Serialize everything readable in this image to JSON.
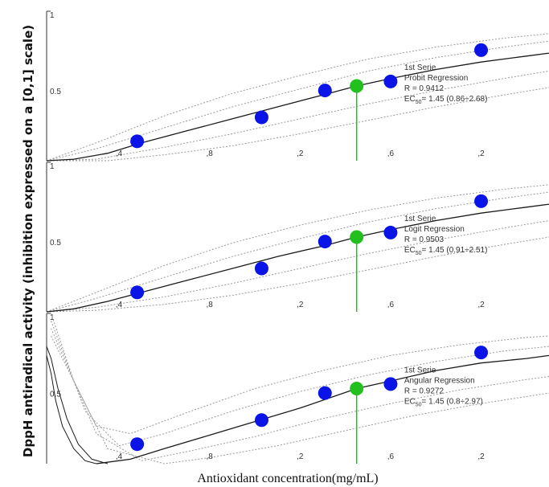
{
  "chart_data": [
    {
      "type": "scatter",
      "series_label": "1st Serie",
      "model": "Probit Regression",
      "r_text": "R = 0.9412",
      "ec_prefix": "EC",
      "ec_sub": "50",
      "ec_value": "= 1.45 (0.86÷2.68)",
      "xlim": [
        0.08,
        2.3
      ],
      "ylim": [
        0,
        1
      ],
      "yticks": [
        "1",
        "0.5"
      ],
      "xticks": [
        0.4,
        0.8,
        1.2,
        1.6,
        2.0
      ],
      "xtick_labels": [
        ",4",
        ",8",
        ",2",
        ",6",
        ",2"
      ],
      "points": [
        {
          "x": 0.48,
          "y": 0.13
        },
        {
          "x": 1.03,
          "y": 0.29
        },
        {
          "x": 1.31,
          "y": 0.47
        },
        {
          "x": 1.6,
          "y": 0.53
        },
        {
          "x": 2.0,
          "y": 0.74
        }
      ],
      "ec50_point": {
        "x": 1.45,
        "y": 0.5
      },
      "fit": [
        [
          0.08,
          0.0
        ],
        [
          0.2,
          0.01
        ],
        [
          0.35,
          0.05
        ],
        [
          0.5,
          0.12
        ],
        [
          0.7,
          0.2
        ],
        [
          0.9,
          0.28
        ],
        [
          1.1,
          0.36
        ],
        [
          1.3,
          0.44
        ],
        [
          1.45,
          0.5
        ],
        [
          1.6,
          0.55
        ],
        [
          1.8,
          0.61
        ],
        [
          2.0,
          0.66
        ],
        [
          2.2,
          0.7
        ],
        [
          2.3,
          0.72
        ]
      ],
      "bands": [
        [
          [
            0.08,
            0.0
          ],
          [
            0.3,
            0.12
          ],
          [
            0.6,
            0.3
          ],
          [
            0.9,
            0.45
          ],
          [
            1.2,
            0.57
          ],
          [
            1.5,
            0.68
          ],
          [
            1.8,
            0.76
          ],
          [
            2.1,
            0.82
          ],
          [
            2.3,
            0.85
          ]
        ],
        [
          [
            0.08,
            0.0
          ],
          [
            0.3,
            0.08
          ],
          [
            0.6,
            0.22
          ],
          [
            0.9,
            0.36
          ],
          [
            1.2,
            0.48
          ],
          [
            1.5,
            0.6
          ],
          [
            1.8,
            0.69
          ],
          [
            2.1,
            0.76
          ],
          [
            2.3,
            0.8
          ]
        ],
        [
          [
            0.08,
            0.0
          ],
          [
            0.3,
            0.01
          ],
          [
            0.6,
            0.09
          ],
          [
            0.9,
            0.18
          ],
          [
            1.2,
            0.28
          ],
          [
            1.5,
            0.38
          ],
          [
            1.8,
            0.47
          ],
          [
            2.1,
            0.55
          ],
          [
            2.3,
            0.6
          ]
        ],
        [
          [
            0.08,
            0.0
          ],
          [
            0.35,
            0.0
          ],
          [
            0.6,
            0.04
          ],
          [
            0.9,
            0.1
          ],
          [
            1.2,
            0.18
          ],
          [
            1.5,
            0.27
          ],
          [
            1.8,
            0.36
          ],
          [
            2.1,
            0.44
          ],
          [
            2.3,
            0.49
          ]
        ]
      ]
    },
    {
      "type": "scatter",
      "series_label": "1st Serie",
      "model": "Logit Regression",
      "r_text": "R = 0.9503",
      "ec_prefix": "EC",
      "ec_sub": "50",
      "ec_value": "= 1.45 (0.91÷2.51)",
      "xlim": [
        0.08,
        2.3
      ],
      "ylim": [
        0,
        1
      ],
      "yticks": [
        "1",
        "0.5"
      ],
      "xticks": [
        0.4,
        0.8,
        1.2,
        1.6,
        2.0
      ],
      "xtick_labels": [
        ",4",
        ",8",
        ",2",
        ",6",
        ",2"
      ],
      "points": [
        {
          "x": 0.48,
          "y": 0.13
        },
        {
          "x": 1.03,
          "y": 0.29
        },
        {
          "x": 1.31,
          "y": 0.47
        },
        {
          "x": 1.6,
          "y": 0.53
        },
        {
          "x": 2.0,
          "y": 0.74
        }
      ],
      "ec50_point": {
        "x": 1.45,
        "y": 0.5
      },
      "fit": [
        [
          0.08,
          0.0
        ],
        [
          0.2,
          0.02
        ],
        [
          0.35,
          0.07
        ],
        [
          0.5,
          0.13
        ],
        [
          0.7,
          0.21
        ],
        [
          0.9,
          0.29
        ],
        [
          1.1,
          0.37
        ],
        [
          1.3,
          0.44
        ],
        [
          1.45,
          0.5
        ],
        [
          1.6,
          0.55
        ],
        [
          1.8,
          0.61
        ],
        [
          2.0,
          0.66
        ],
        [
          2.2,
          0.7
        ],
        [
          2.3,
          0.72
        ]
      ],
      "bands": [
        [
          [
            0.08,
            0.0
          ],
          [
            0.3,
            0.13
          ],
          [
            0.6,
            0.31
          ],
          [
            0.9,
            0.46
          ],
          [
            1.2,
            0.58
          ],
          [
            1.5,
            0.68
          ],
          [
            1.8,
            0.76
          ],
          [
            2.1,
            0.82
          ],
          [
            2.3,
            0.85
          ]
        ],
        [
          [
            0.08,
            0.0
          ],
          [
            0.3,
            0.09
          ],
          [
            0.6,
            0.23
          ],
          [
            0.9,
            0.37
          ],
          [
            1.2,
            0.49
          ],
          [
            1.5,
            0.6
          ],
          [
            1.8,
            0.69
          ],
          [
            2.1,
            0.76
          ],
          [
            2.3,
            0.8
          ]
        ],
        [
          [
            0.08,
            0.0
          ],
          [
            0.3,
            0.03
          ],
          [
            0.6,
            0.1
          ],
          [
            0.9,
            0.19
          ],
          [
            1.2,
            0.29
          ],
          [
            1.5,
            0.39
          ],
          [
            1.8,
            0.48
          ],
          [
            2.1,
            0.56
          ],
          [
            2.3,
            0.61
          ]
        ],
        [
          [
            0.08,
            0.0
          ],
          [
            0.3,
            0.01
          ],
          [
            0.6,
            0.05
          ],
          [
            0.9,
            0.11
          ],
          [
            1.2,
            0.19
          ],
          [
            1.5,
            0.28
          ],
          [
            1.8,
            0.37
          ],
          [
            2.1,
            0.45
          ],
          [
            2.3,
            0.5
          ]
        ]
      ]
    },
    {
      "type": "scatter",
      "series_label": "1st Serie",
      "model": "Angular Regression",
      "r_text": "R = 0.9272",
      "ec_prefix": "EC",
      "ec_sub": "50",
      "ec_value": "= 1.45 (0.8÷2.97)",
      "xlim": [
        0.08,
        2.3
      ],
      "ylim": [
        0,
        1
      ],
      "yticks": [
        "1",
        "0.5"
      ],
      "xticks": [
        0.4,
        0.8,
        1.2,
        1.6,
        2.0
      ],
      "xtick_labels": [
        ",4",
        ",8",
        ",2",
        ",6",
        ",2"
      ],
      "points": [
        {
          "x": 0.48,
          "y": 0.13
        },
        {
          "x": 1.03,
          "y": 0.29
        },
        {
          "x": 1.31,
          "y": 0.47
        },
        {
          "x": 1.6,
          "y": 0.53
        },
        {
          "x": 2.0,
          "y": 0.74
        }
      ],
      "ec50_point": {
        "x": 1.45,
        "y": 0.5
      },
      "fit": [
        [
          0.3,
          0.0
        ],
        [
          0.45,
          0.03
        ],
        [
          0.6,
          0.1
        ],
        [
          0.8,
          0.19
        ],
        [
          1.0,
          0.28
        ],
        [
          1.2,
          0.37
        ],
        [
          1.45,
          0.5
        ],
        [
          1.6,
          0.55
        ],
        [
          1.8,
          0.62
        ],
        [
          2.0,
          0.67
        ],
        [
          2.2,
          0.7
        ],
        [
          2.3,
          0.72
        ]
      ],
      "extra_curves": [
        [
          [
            0.08,
            0.78
          ],
          [
            0.1,
            0.7
          ],
          [
            0.13,
            0.5
          ],
          [
            0.17,
            0.3
          ],
          [
            0.22,
            0.13
          ],
          [
            0.28,
            0.03
          ],
          [
            0.35,
            0.0
          ]
        ],
        [
          [
            0.08,
            0.72
          ],
          [
            0.1,
            0.6
          ],
          [
            0.12,
            0.42
          ],
          [
            0.15,
            0.25
          ],
          [
            0.2,
            0.1
          ],
          [
            0.25,
            0.02
          ],
          [
            0.3,
            0.0
          ]
        ]
      ],
      "bands": [
        [
          [
            0.1,
            1.0
          ],
          [
            0.2,
            0.55
          ],
          [
            0.3,
            0.25
          ],
          [
            0.45,
            0.2
          ],
          [
            0.7,
            0.34
          ],
          [
            1.0,
            0.5
          ],
          [
            1.3,
            0.62
          ],
          [
            1.6,
            0.72
          ],
          [
            1.9,
            0.79
          ],
          [
            2.2,
            0.84
          ],
          [
            2.3,
            0.85
          ]
        ],
        [
          [
            0.1,
            0.95
          ],
          [
            0.25,
            0.35
          ],
          [
            0.4,
            0.12
          ],
          [
            0.6,
            0.2
          ],
          [
            0.9,
            0.35
          ],
          [
            1.2,
            0.48
          ],
          [
            1.5,
            0.59
          ],
          [
            1.8,
            0.68
          ],
          [
            2.1,
            0.75
          ],
          [
            2.3,
            0.78
          ]
        ],
        [
          [
            0.1,
            0.9
          ],
          [
            0.3,
            0.2
          ],
          [
            0.5,
            0.02
          ],
          [
            0.7,
            0.08
          ],
          [
            1.0,
            0.18
          ],
          [
            1.3,
            0.3
          ],
          [
            1.6,
            0.4
          ],
          [
            1.9,
            0.49
          ],
          [
            2.2,
            0.56
          ],
          [
            2.3,
            0.58
          ]
        ],
        [
          [
            0.1,
            0.85
          ],
          [
            0.35,
            0.1
          ],
          [
            0.6,
            0.0
          ],
          [
            0.8,
            0.04
          ],
          [
            1.1,
            0.12
          ],
          [
            1.4,
            0.22
          ],
          [
            1.7,
            0.32
          ],
          [
            2.0,
            0.4
          ],
          [
            2.3,
            0.47
          ]
        ]
      ]
    }
  ],
  "figure": {
    "ylabel": "DppH antiradical activity (inhibition expressed on a [0,1] scale)",
    "xlabel": "Antioxidant concentration(mg/mL)",
    "colors": {
      "point": "#0a14e6",
      "ec50_point": "#22c01e",
      "ec50_line": "#22c01e",
      "fit": "#1a1a1a",
      "band": "#9a9a9a",
      "axis": "#333333"
    }
  }
}
